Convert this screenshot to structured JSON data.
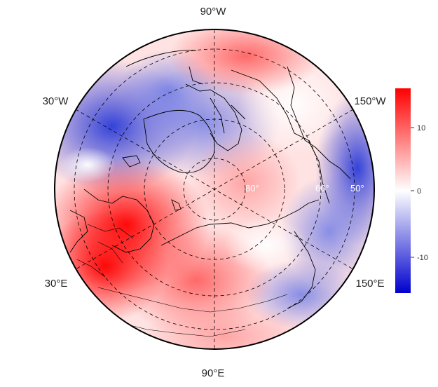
{
  "map": {
    "projection": "north polar stereographic",
    "colors": {
      "positive": "#ff0000",
      "neutral": "#ffffff",
      "negative": "#0000cd",
      "coastline": "#000000",
      "graticule": "#000000"
    },
    "longitude_labels": {
      "top": "90°W",
      "upper_left": "30°W",
      "upper_right": "150°W",
      "lower_left": "30°E",
      "lower_right": "150°E",
      "bottom": "90°E"
    },
    "latitude_labels": [
      "80°",
      "60°",
      "50°"
    ]
  },
  "colorbar": {
    "ticks": [
      "10",
      "0",
      "-10"
    ],
    "range": [
      -15,
      15
    ],
    "gradient": [
      "#0000cd",
      "#ffffff",
      "#ff0000"
    ]
  }
}
